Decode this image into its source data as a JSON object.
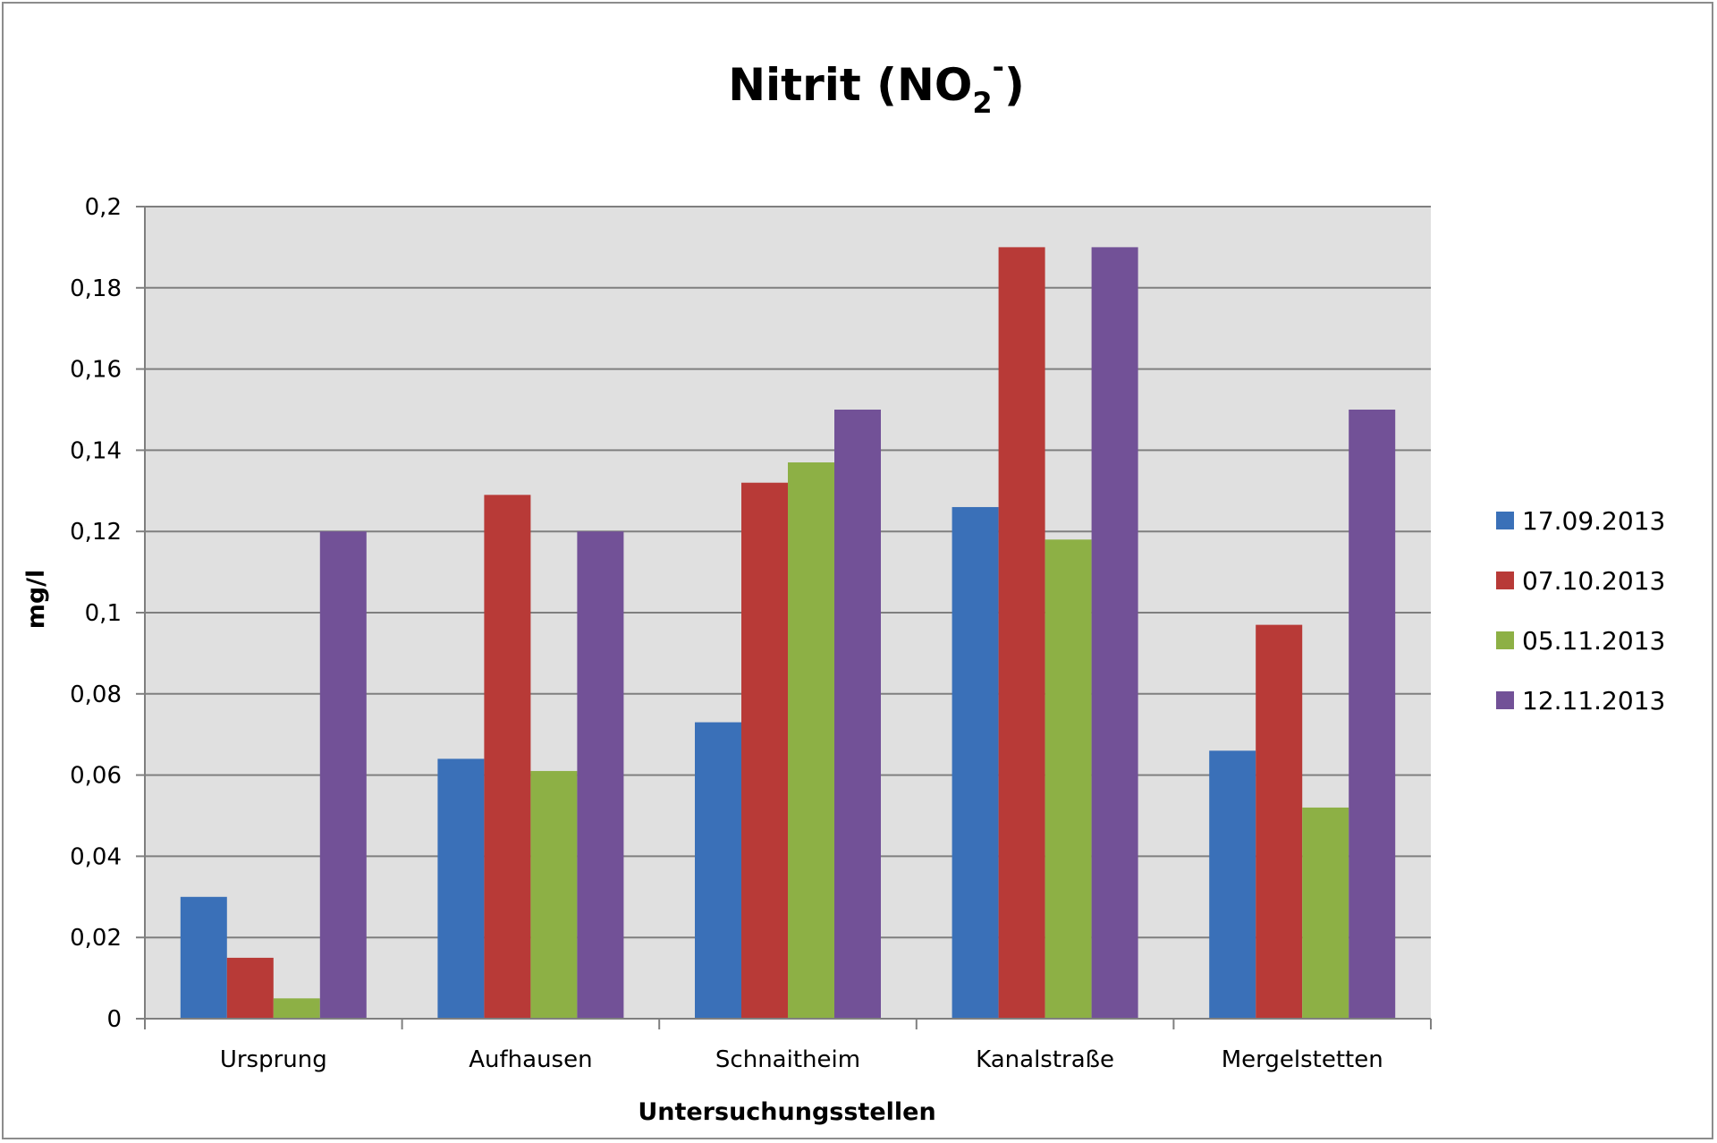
{
  "chart_data": {
    "type": "bar",
    "title": {
      "main": "Nitrit (NO",
      "subscript": "2",
      "superscript": "-",
      "close": ")"
    },
    "xlabel": "Untersuchungsstellen",
    "ylabel": "mg/l",
    "ylim": [
      0,
      0.2
    ],
    "yticks": [
      0,
      0.02,
      0.04,
      0.06,
      0.08,
      0.1,
      0.12,
      0.14,
      0.16,
      0.18,
      0.2
    ],
    "ytick_labels": [
      "0",
      "0,02",
      "0,04",
      "0,06",
      "0,08",
      "0,1",
      "0,12",
      "0,14",
      "0,16",
      "0,18",
      "0,2"
    ],
    "grid": true,
    "legend_position": "right",
    "plot_background": "#e0e0e0",
    "categories": [
      "Ursprung",
      "Aufhausen",
      "Schnaitheim",
      "Kanalstraße",
      "Mergelstetten"
    ],
    "series": [
      {
        "name": "17.09.2013",
        "color": "#3a70b8",
        "values": [
          0.03,
          0.064,
          0.073,
          0.126,
          0.066
        ]
      },
      {
        "name": "07.10.2013",
        "color": "#b83a37",
        "values": [
          0.015,
          0.129,
          0.132,
          0.19,
          0.097
        ]
      },
      {
        "name": "05.11.2013",
        "color": "#8db045",
        "values": [
          0.005,
          0.061,
          0.137,
          0.118,
          0.052
        ]
      },
      {
        "name": "12.11.2013",
        "color": "#725197",
        "values": [
          0.12,
          0.12,
          0.15,
          0.19,
          0.15
        ]
      }
    ]
  }
}
